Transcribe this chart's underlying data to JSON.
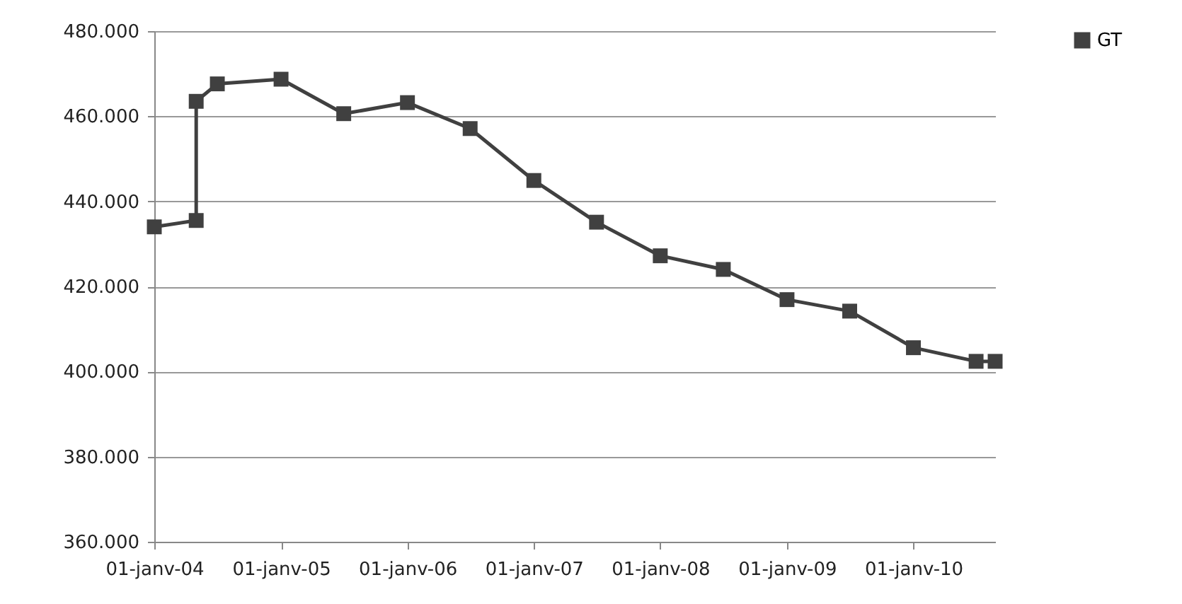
{
  "chart_data": {
    "type": "line",
    "x": [
      "2004-01-01",
      "2004-05-01",
      "2004-05-01",
      "2004-07-01",
      "2005-01-01",
      "2005-07-01",
      "2006-01-01",
      "2006-07-01",
      "2007-01-01",
      "2007-07-01",
      "2008-01-01",
      "2008-07-01",
      "2009-01-01",
      "2009-07-01",
      "2010-01-01",
      "2010-07-01",
      "2010-08-25"
    ],
    "series": [
      {
        "name": "GT",
        "color": "#404040",
        "values": [
          434,
          435.5,
          463.5,
          467.6,
          468.7,
          460.6,
          463.2,
          457.1,
          444.9,
          435.1,
          427.2,
          424.0,
          416.9,
          414.2,
          405.6,
          402.4,
          402.4
        ]
      }
    ],
    "xlim": [
      "2004-01-01",
      "2010-08-25"
    ],
    "xticks": [
      {
        "value": "2004-01-01",
        "label": "01-janv-04"
      },
      {
        "value": "2005-01-01",
        "label": "01-janv-05"
      },
      {
        "value": "2006-01-01",
        "label": "01-janv-06"
      },
      {
        "value": "2007-01-01",
        "label": "01-janv-07"
      },
      {
        "value": "2008-01-01",
        "label": "01-janv-08"
      },
      {
        "value": "2009-01-01",
        "label": "01-janv-09"
      },
      {
        "value": "2010-01-01",
        "label": "01-janv-10"
      }
    ],
    "ylim": [
      360,
      480
    ],
    "yticks": [
      {
        "value": 360,
        "label": "360.000"
      },
      {
        "value": 380,
        "label": "380.000"
      },
      {
        "value": 400,
        "label": "400.000"
      },
      {
        "value": 420,
        "label": "420.000"
      },
      {
        "value": 440,
        "label": "440.000"
      },
      {
        "value": 460,
        "label": "460.000"
      },
      {
        "value": 480,
        "label": "480.000"
      }
    ],
    "grid": "y",
    "legend": "right",
    "marker": "square",
    "line_style": "solid"
  }
}
